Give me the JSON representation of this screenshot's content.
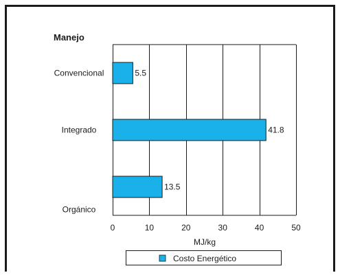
{
  "chart_data": {
    "type": "bar",
    "orientation": "horizontal",
    "categories": [
      "Convencional",
      "Integrado",
      "Orgánico"
    ],
    "series": [
      {
        "name": "Costo Energético",
        "values": [
          5.5,
          41.8,
          13.5
        ],
        "color": "#1ab0ea"
      }
    ],
    "data_labels": [
      "5.5",
      "41.8",
      "13.5"
    ],
    "category_axis_title": "Manejo",
    "xlabel": "MJ/kg",
    "xlim": [
      0,
      50
    ],
    "xticks": [
      0,
      10,
      20,
      30,
      40,
      50
    ],
    "grid": true,
    "legend_position": "bottom",
    "colors": {
      "bar_fill": "#1ab0ea",
      "bar_stroke": "#1a1a1a",
      "grid": "#1a1a1a",
      "frame": "#1a1a1a"
    }
  }
}
